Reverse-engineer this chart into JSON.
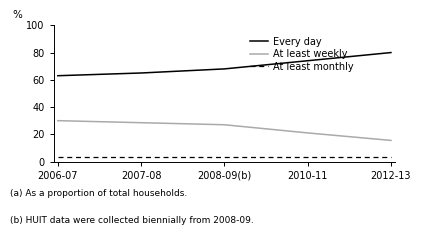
{
  "x_positions": [
    0,
    1,
    2,
    3,
    4
  ],
  "x_tick_labels": [
    "2006-07",
    "2007-08",
    "2008-09(b)",
    "2010-11",
    "2012-13"
  ],
  "every_day": [
    63,
    65,
    68,
    74,
    80
  ],
  "at_least_weekly": [
    30,
    28.5,
    27,
    21,
    15.5
  ],
  "at_least_monthly": [
    3.5,
    3.5,
    3.5,
    3.5,
    3.5
  ],
  "ylim": [
    0,
    100
  ],
  "yticks": [
    0,
    20,
    40,
    60,
    80,
    100
  ],
  "ylabel": "%",
  "line_color_everyday": "#000000",
  "line_color_weekly": "#aaaaaa",
  "line_color_monthly": "#000000",
  "legend_labels": [
    "Every day",
    "At least weekly",
    "At least monthly"
  ],
  "footnote1": "(a) As a proportion of total households.",
  "footnote2": "(b) HUIT data were collected biennially from 2008-09.",
  "background_color": "#ffffff",
  "font_size_tick": 7,
  "font_size_footnote": 6.5,
  "font_size_ylabel": 7.5,
  "font_size_legend": 7
}
